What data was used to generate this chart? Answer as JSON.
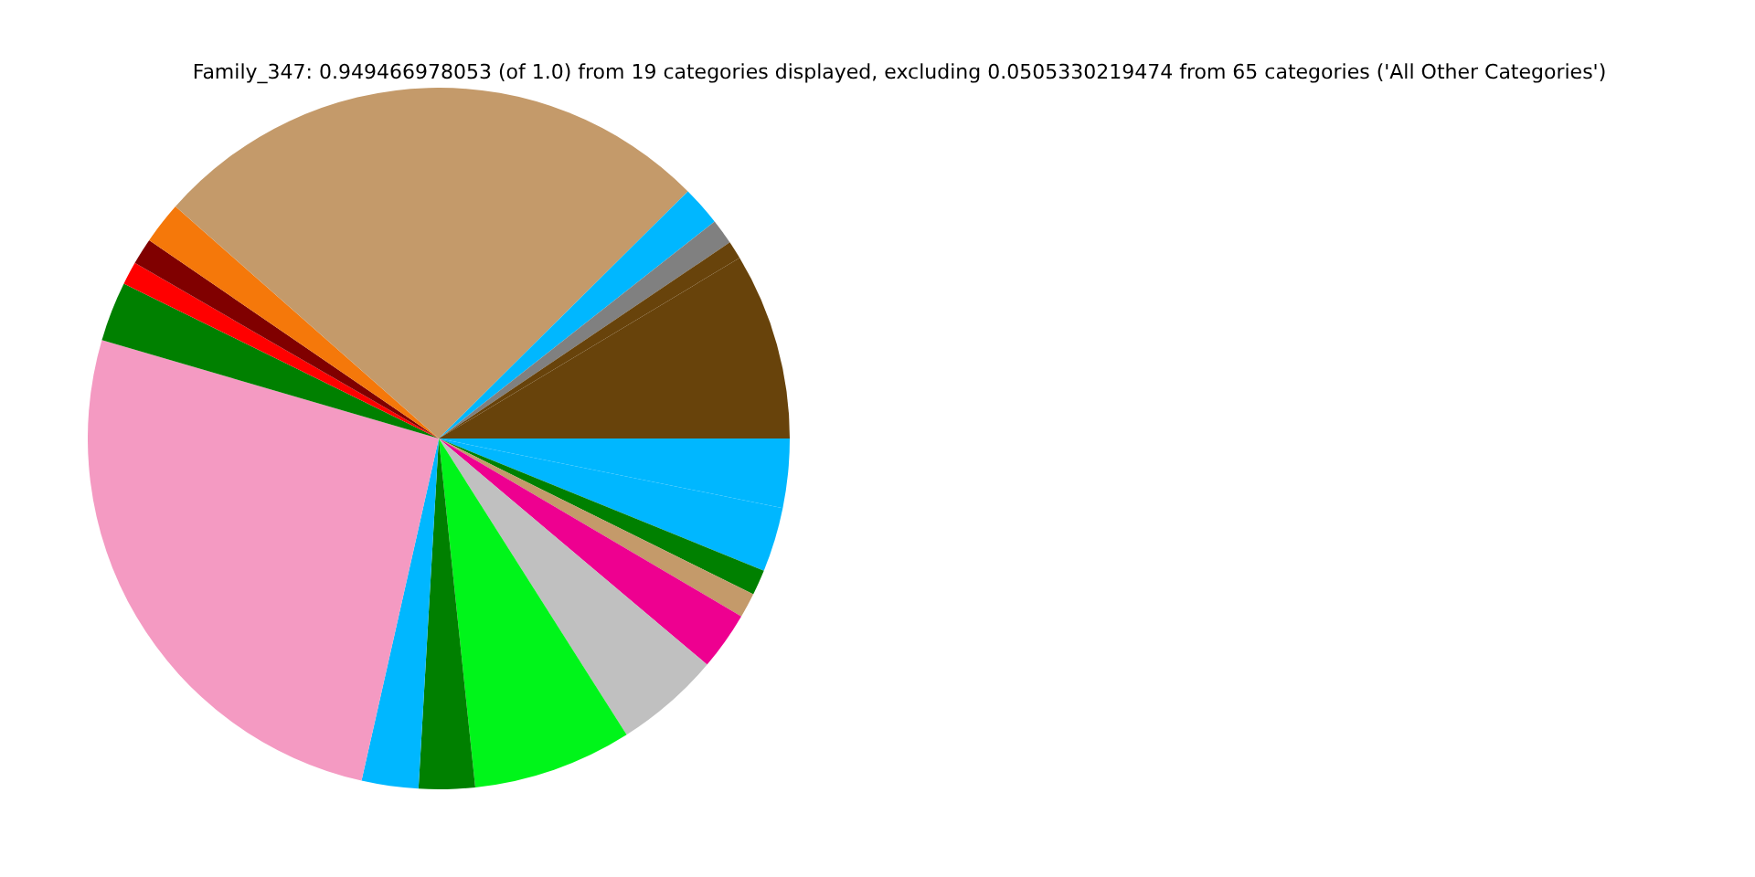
{
  "chart_data": {
    "type": "pie",
    "title": "Family_347: 0.949466978053 (of 1.0) from 19 categories displayed, excluding 0.0505330219474 from 65 categories ('All Other Categories')",
    "categories": [
      null,
      null,
      null,
      null,
      null,
      null,
      null,
      null,
      null,
      null,
      null,
      null,
      null,
      null,
      null,
      null,
      null,
      null,
      null
    ],
    "values": [
      3.18,
      2.97,
      1.17,
      1.14,
      2.69,
      4.86,
      7.33,
      2.58,
      2.61,
      26.0,
      2.75,
      1.06,
      1.22,
      1.94,
      26.06,
      1.83,
      1.17,
      0.83,
      8.61
    ],
    "colors": [
      "#00b7ff",
      "#00b7ff",
      "#008000",
      "#c49a6a",
      "#ee0090",
      "#c0c0c0",
      "#00f51a",
      "#008000",
      "#00b7ff",
      "#f49ac2",
      "#008000",
      "#ff0000",
      "#800000",
      "#f5780a",
      "#c49a6a",
      "#00b7ff",
      "#808080",
      "#68430b",
      "#68430b"
    ],
    "legend": false
  }
}
